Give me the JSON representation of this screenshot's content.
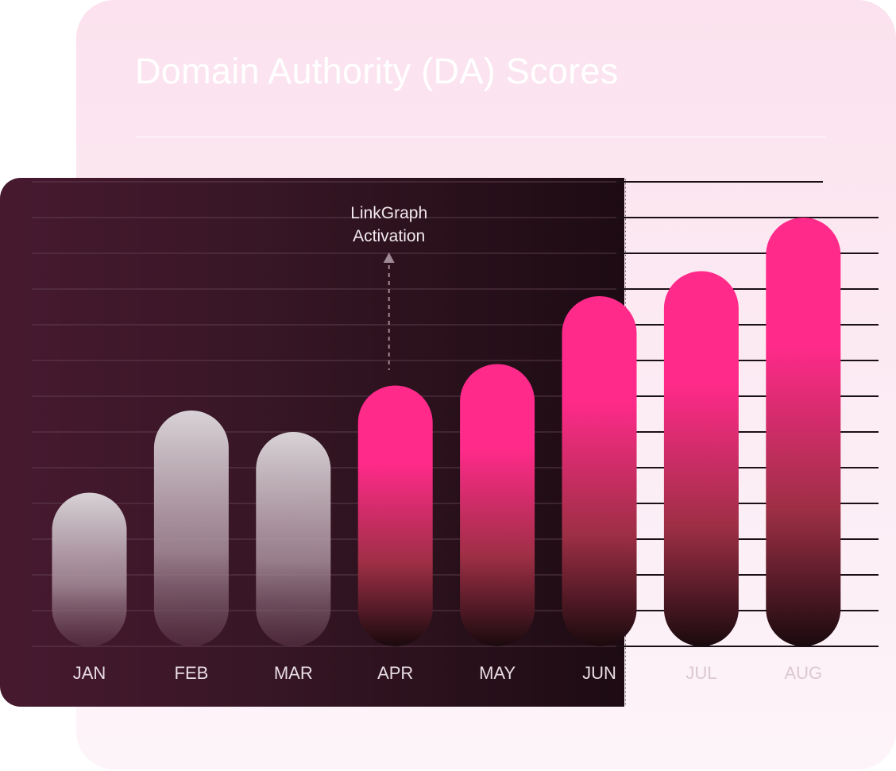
{
  "chart_data": {
    "type": "bar",
    "title": "Domain Authority (DA) Scores",
    "categories": [
      "JAN",
      "FEB",
      "MAR",
      "APR",
      "MAY",
      "JUN",
      "JUL",
      "AUG"
    ],
    "values": [
      4.3,
      6.6,
      6.0,
      7.3,
      7.9,
      9.8,
      10.5,
      12.0
    ],
    "ylim": [
      0,
      13
    ],
    "grid": true,
    "annotation": {
      "text": [
        "LinkGraph",
        "Activation"
      ],
      "category": "APR"
    },
    "colors": {
      "bar_before": "#d8d2d6",
      "bar_after_top": "#ff2a8a",
      "bar_after_bottom": "#1a0a0e",
      "panel_dark": "#3a1727",
      "card_light": "#fbe2ee",
      "gridline_dark": "#6a4a59",
      "gridline_light": "#1a1015"
    }
  }
}
